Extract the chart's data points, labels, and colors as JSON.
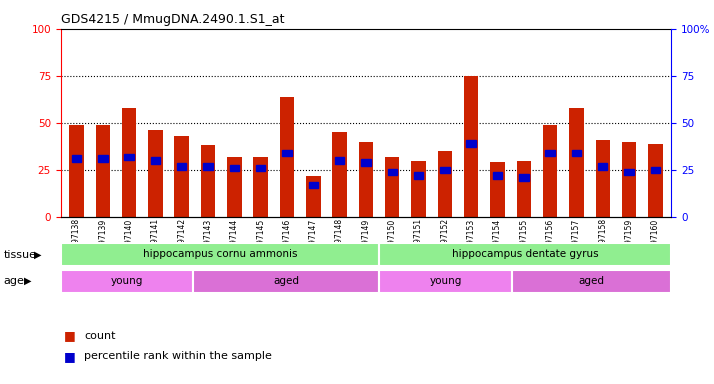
{
  "title": "GDS4215 / MmugDNA.2490.1.S1_at",
  "samples": [
    "GSM297138",
    "GSM297139",
    "GSM297140",
    "GSM297141",
    "GSM297142",
    "GSM297143",
    "GSM297144",
    "GSM297145",
    "GSM297146",
    "GSM297147",
    "GSM297148",
    "GSM297149",
    "GSM297150",
    "GSM297151",
    "GSM297152",
    "GSM297153",
    "GSM297154",
    "GSM297155",
    "GSM297156",
    "GSM297157",
    "GSM297158",
    "GSM297159",
    "GSM297160"
  ],
  "count_values": [
    49,
    49,
    58,
    46,
    43,
    38,
    32,
    32,
    64,
    22,
    45,
    40,
    32,
    30,
    35,
    75,
    29,
    30,
    49,
    58,
    41,
    40,
    39
  ],
  "percentile_values": [
    31,
    31,
    32,
    30,
    27,
    27,
    26,
    26,
    34,
    17,
    30,
    29,
    24,
    22,
    25,
    39,
    22,
    21,
    34,
    34,
    27,
    24,
    25
  ],
  "tissue_groups": [
    {
      "label": "hippocampus cornu ammonis",
      "start": 0,
      "end": 11,
      "color": "#90EE90"
    },
    {
      "label": "hippocampus dentate gyrus",
      "start": 12,
      "end": 22,
      "color": "#90EE90"
    }
  ],
  "age_groups": [
    {
      "label": "young",
      "start": 0,
      "end": 4,
      "color": "#EE82EE"
    },
    {
      "label": "aged",
      "start": 5,
      "end": 11,
      "color": "#DA70D6"
    },
    {
      "label": "young",
      "start": 12,
      "end": 16,
      "color": "#EE82EE"
    },
    {
      "label": "aged",
      "start": 17,
      "end": 22,
      "color": "#DA70D6"
    }
  ],
  "bar_color": "#CC2200",
  "percentile_color": "#0000CC",
  "bar_width": 0.55,
  "ylim": [
    0,
    100
  ],
  "yticks": [
    0,
    25,
    50,
    75,
    100
  ],
  "grid_lines": [
    25,
    50,
    75
  ],
  "background_color": "#FFFFFF",
  "plot_bg_color": "#FFFFFF",
  "legend_count_label": "count",
  "legend_percentile_label": "percentile rank within the sample",
  "tissue_label": "tissue",
  "age_label": "age"
}
